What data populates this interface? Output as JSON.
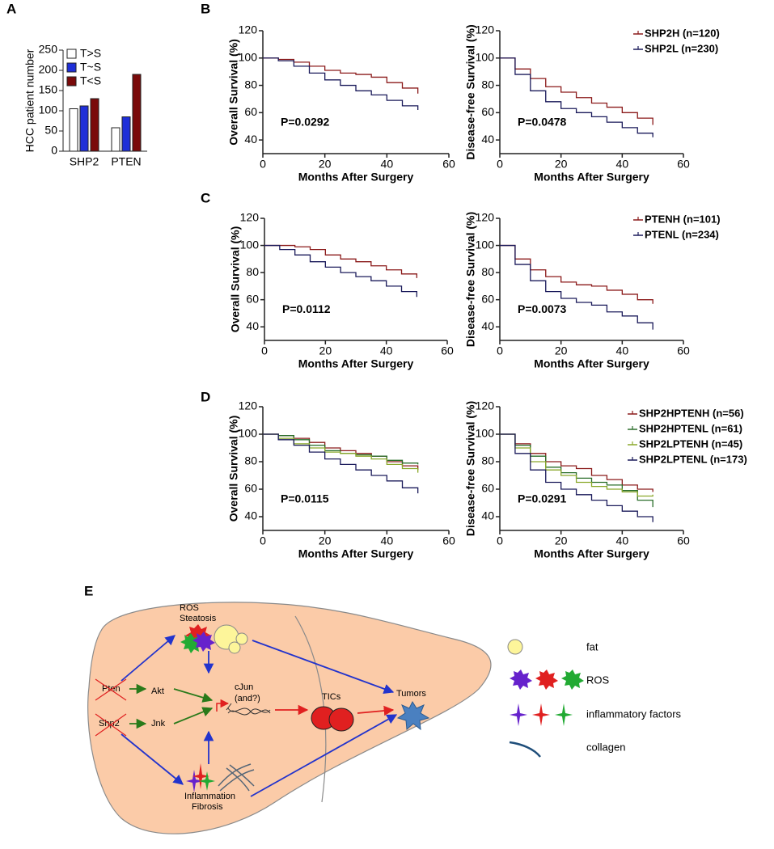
{
  "panel_labels": [
    "A",
    "B",
    "C",
    "D",
    "E"
  ],
  "chart_data": [
    {
      "type": "bar",
      "ylabel": "HCC patient number",
      "categories": [
        "SHP2",
        "PTEN"
      ],
      "series": [
        {
          "name": "T>S",
          "color": "#ffffff",
          "values": [
            105,
            58
          ]
        },
        {
          "name": "T~S",
          "color": "#1f2fd8",
          "values": [
            112,
            85
          ]
        },
        {
          "name": "T<S",
          "color": "#7a0a0a",
          "values": [
            130,
            190
          ]
        }
      ],
      "ylim": [
        0,
        250
      ],
      "yticks": [
        0,
        50,
        100,
        150,
        200,
        250
      ]
    },
    {
      "type": "km",
      "ylabel": "Overall Survival (%)",
      "xlabel": "Months After Surgery",
      "annotation": "P=0.0292",
      "x": [
        0,
        5,
        10,
        15,
        20,
        25,
        30,
        35,
        40,
        45,
        50
      ],
      "series": [
        {
          "name": "SHP2H (n=120)",
          "color": "#8b1a1a",
          "values": [
            100,
            99,
            97,
            94,
            91,
            89,
            88,
            86,
            82,
            78,
            74
          ]
        },
        {
          "name": "SHP2L (n=230)",
          "color": "#1a1a5a",
          "values": [
            100,
            98,
            94,
            89,
            84,
            80,
            76,
            73,
            69,
            65,
            62
          ]
        }
      ],
      "xlim": [
        0,
        60
      ],
      "xticks": [
        0,
        20,
        40,
        60
      ],
      "ylim": [
        30,
        120
      ],
      "yticks": [
        40,
        60,
        80,
        100,
        120
      ],
      "legend": false
    },
    {
      "type": "km",
      "ylabel": "Disease-free Survival (%)",
      "xlabel": "Months After Surgery",
      "annotation": "P=0.0478",
      "x": [
        0,
        5,
        10,
        15,
        20,
        25,
        30,
        35,
        40,
        45,
        50
      ],
      "series": [
        {
          "name": "SHP2H (n=120)",
          "color": "#8b1a1a",
          "values": [
            100,
            92,
            85,
            79,
            75,
            71,
            67,
            64,
            60,
            56,
            51
          ]
        },
        {
          "name": "SHP2L (n=230)",
          "color": "#1a1a5a",
          "values": [
            100,
            88,
            76,
            68,
            63,
            60,
            57,
            53,
            49,
            45,
            42
          ]
        }
      ],
      "xlim": [
        0,
        60
      ],
      "xticks": [
        0,
        20,
        40,
        60
      ],
      "ylim": [
        30,
        120
      ],
      "yticks": [
        40,
        60,
        80,
        100,
        120
      ],
      "legend": true
    },
    {
      "type": "km",
      "ylabel": "Overall Survival (%)",
      "xlabel": "Months After Surgery",
      "annotation": "P=0.0112",
      "x": [
        0,
        5,
        10,
        15,
        20,
        25,
        30,
        35,
        40,
        45,
        50
      ],
      "series": [
        {
          "name": "PTENH (n=101)",
          "color": "#8b1a1a",
          "values": [
            100,
            100,
            99,
            97,
            93,
            90,
            88,
            85,
            82,
            79,
            76
          ]
        },
        {
          "name": "PTENL (n=234)",
          "color": "#1a1a5a",
          "values": [
            100,
            97,
            93,
            88,
            84,
            80,
            77,
            74,
            70,
            66,
            62
          ]
        }
      ],
      "xlim": [
        0,
        60
      ],
      "xticks": [
        0,
        20,
        40,
        60
      ],
      "ylim": [
        30,
        120
      ],
      "yticks": [
        40,
        60,
        80,
        100,
        120
      ],
      "legend": false
    },
    {
      "type": "km",
      "ylabel": "Disease-free Survival (%)",
      "xlabel": "Months After Surgery",
      "annotation": "P=0.0073",
      "x": [
        0,
        5,
        10,
        15,
        20,
        25,
        30,
        35,
        40,
        45,
        50
      ],
      "series": [
        {
          "name": "PTENH (n=101)",
          "color": "#8b1a1a",
          "values": [
            100,
            90,
            82,
            77,
            73,
            71,
            70,
            67,
            64,
            60,
            57
          ]
        },
        {
          "name": "PTENL (n=234)",
          "color": "#1a1a5a",
          "values": [
            100,
            86,
            74,
            66,
            61,
            58,
            56,
            51,
            48,
            43,
            38
          ]
        }
      ],
      "xlim": [
        0,
        60
      ],
      "xticks": [
        0,
        20,
        40,
        60
      ],
      "ylim": [
        30,
        120
      ],
      "yticks": [
        40,
        60,
        80,
        100,
        120
      ],
      "legend": true
    },
    {
      "type": "km",
      "ylabel": "Overall Survival (%)",
      "xlabel": "Months After Surgery",
      "annotation": "P=0.0115",
      "x": [
        0,
        5,
        10,
        15,
        20,
        25,
        30,
        35,
        40,
        45,
        50
      ],
      "series": [
        {
          "name": "SHP2HPTENH (n=56)",
          "color": "#8b1a1a",
          "values": [
            100,
            99,
            97,
            94,
            90,
            88,
            86,
            84,
            80,
            77,
            74
          ]
        },
        {
          "name": "SHP2HPTENL (n=61)",
          "color": "#2a6e2a",
          "values": [
            100,
            99,
            96,
            92,
            88,
            86,
            85,
            84,
            81,
            79,
            78
          ]
        },
        {
          "name": "SHP2LPTENH (n=45)",
          "color": "#8aa82a",
          "values": [
            100,
            97,
            93,
            90,
            87,
            86,
            84,
            82,
            78,
            75,
            72
          ]
        },
        {
          "name": "SHP2LPTENL (n=173)",
          "color": "#1a1a5a",
          "values": [
            100,
            96,
            92,
            87,
            82,
            78,
            74,
            70,
            66,
            61,
            57
          ]
        }
      ],
      "xlim": [
        0,
        60
      ],
      "xticks": [
        0,
        20,
        40,
        60
      ],
      "ylim": [
        30,
        120
      ],
      "yticks": [
        40,
        60,
        80,
        100,
        120
      ],
      "legend": false
    },
    {
      "type": "km",
      "ylabel": "Disease-free Survival (%)",
      "xlabel": "Months After Surgery",
      "annotation": "P=0.0291",
      "x": [
        0,
        5,
        10,
        15,
        20,
        25,
        30,
        35,
        40,
        45,
        50
      ],
      "series": [
        {
          "name": "SHP2HPTENH (n=56)",
          "color": "#8b1a1a",
          "values": [
            100,
            93,
            86,
            80,
            77,
            75,
            70,
            67,
            63,
            60,
            58
          ]
        },
        {
          "name": "SHP2HPTENL (n=61)",
          "color": "#2a6e2a",
          "values": [
            100,
            92,
            84,
            76,
            72,
            68,
            65,
            63,
            59,
            52,
            47
          ]
        },
        {
          "name": "SHP2LPTENH (n=45)",
          "color": "#8aa82a",
          "values": [
            100,
            90,
            80,
            74,
            70,
            65,
            62,
            60,
            58,
            55,
            56
          ]
        },
        {
          "name": "SHP2LPTENL (n=173)",
          "color": "#1a1a5a",
          "values": [
            100,
            86,
            74,
            65,
            60,
            56,
            52,
            48,
            44,
            40,
            36
          ]
        }
      ],
      "xlim": [
        0,
        60
      ],
      "xticks": [
        0,
        20,
        40,
        60
      ],
      "ylim": [
        30,
        120
      ],
      "yticks": [
        40,
        60,
        80,
        100,
        120
      ],
      "legend": true
    }
  ],
  "diagram": {
    "labels": {
      "ros": "ROS",
      "steatosis": "Steatosis",
      "pten": "Pten",
      "shp2": "Shp2",
      "akt": "Akt",
      "jnk": "Jnk",
      "cjun": "cJun",
      "and": "(and?)",
      "tics": "TICs",
      "tumors": "Tumors",
      "inflammation": "Inflammation",
      "fibrosis": "Fibrosis"
    },
    "legend": [
      "fat",
      "ROS",
      "inflammatory factors",
      "collagen"
    ]
  }
}
